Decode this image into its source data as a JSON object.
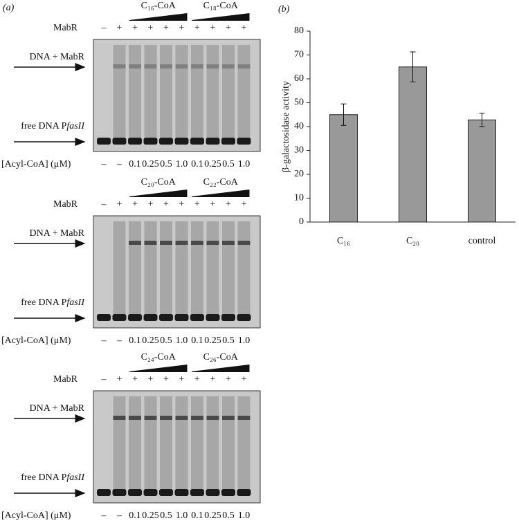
{
  "panel_a": {
    "label": "(a)",
    "gels": [
      {
        "groups": [
          "C₁₆-CoA",
          "C₁₈-CoA"
        ],
        "mabr_label": "MabR",
        "mabr": [
          "–",
          "+",
          "+",
          "+",
          "+",
          "+",
          "+",
          "+",
          "+",
          "+"
        ],
        "complex_label": "DNA + MabR",
        "free_label": "free DNA P",
        "free_label_italic": "fasII",
        "conc_label": "[Acyl-CoA] (μM)",
        "conc": [
          "–",
          "–",
          "0.1",
          "0.25",
          "0.5",
          "1.0",
          "0.1",
          "0.25",
          "0.5",
          "1.0"
        ]
      },
      {
        "groups": [
          "C₂₀-CoA",
          "C₂₂-CoA"
        ],
        "mabr_label": "MabR",
        "mabr": [
          "–",
          "+",
          "+",
          "+",
          "+",
          "+",
          "+",
          "+",
          "+",
          "+"
        ],
        "complex_label": "DNA + MabR",
        "free_label": "free DNA P",
        "free_label_italic": "fasII",
        "conc_label": "[Acyl-CoA] (μM)",
        "conc": [
          "–",
          "–",
          "0.1",
          "0.25",
          "0.5",
          "1.0",
          "0.1",
          "0.25",
          "0.5",
          "1.0"
        ]
      },
      {
        "groups": [
          "C₂₄-CoA",
          "C₂₆-CoA"
        ],
        "mabr_label": "MabR",
        "mabr": [
          "–",
          "+",
          "+",
          "+",
          "+",
          "+",
          "+",
          "+",
          "+",
          "+"
        ],
        "complex_label": "DNA + MabR",
        "free_label": "free DNA P",
        "free_label_italic": "fasII",
        "conc_label": "[Acyl-CoA] (μM)",
        "conc": [
          "–",
          "–",
          "0.1",
          "0.25",
          "0.5",
          "1.0",
          "0.1",
          "0.25",
          "0.5",
          "1.0"
        ]
      }
    ]
  },
  "chart_data": {
    "type": "bar",
    "panel_label": "(b)",
    "ylabel": "β-galactosidase activity",
    "categories": [
      "C₁₆",
      "C₂₀",
      "control"
    ],
    "values": [
      45,
      65,
      42.8
    ],
    "errors": [
      4.5,
      6.3,
      2.8
    ],
    "color": "#999999",
    "ylim": [
      0,
      80
    ],
    "yticks": [
      0,
      10,
      20,
      30,
      40,
      50,
      60,
      70,
      80
    ]
  }
}
